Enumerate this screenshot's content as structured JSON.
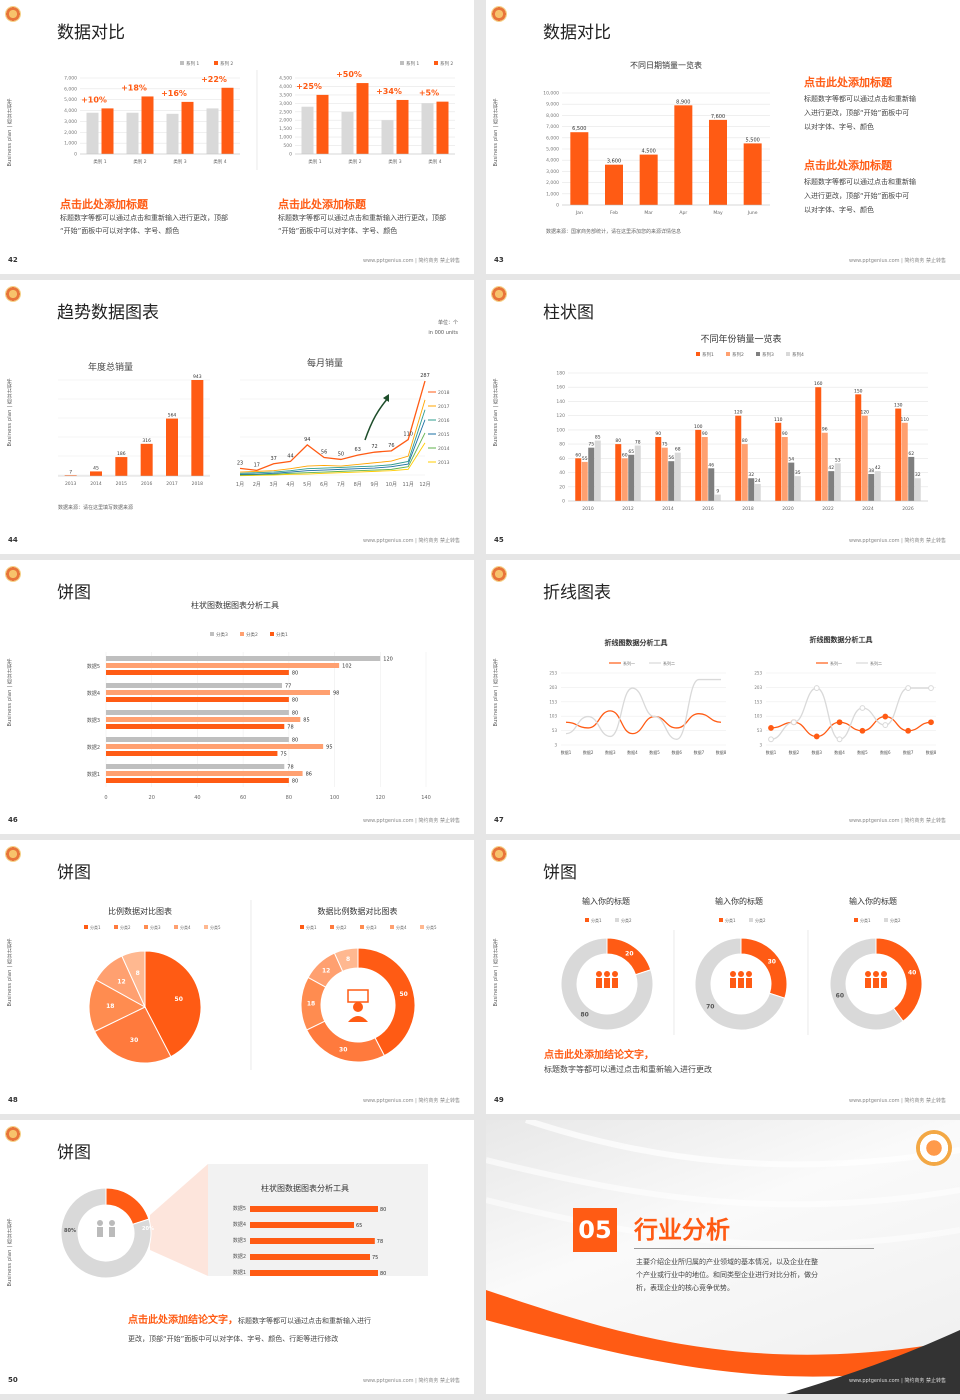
{
  "footer": "www.pptgenius.com | 简约商务 禁止转售",
  "side": "Business plan | 商业计划书",
  "s42": {
    "num": "42",
    "title": "数据对比",
    "heading1": "点击此处添加标题",
    "heading2": "点击此处添加标题",
    "body1a": "标题数字等都可以通过点击和重新输入进行更改，顶部",
    "body1b": "“开始”面板中可以对字体、字号、颜色",
    "body2a": "标题数字等都可以通过点击和重新输入进行更改，顶部",
    "body2b": "“开始”面板中可以对字体、字号、颜色"
  },
  "s43": {
    "num": "43",
    "title": "数据对比",
    "chart_title": "不同日期销量一览表",
    "source": "数据来源：国家商务部统计，请在这里添加您的来源详情信息",
    "h1": "点击此处添加标题",
    "b1a": "标题数字等都可以通过点击和重新输",
    "b1b": "入进行更改，顶部“开始”面板中可",
    "b1c": "以对字体、字号、颜色",
    "h2": "点击此处添加标题",
    "b2a": "标题数字等都可以通过点击和重新输",
    "b2b": "入进行更改，顶部“开始”面板中可",
    "b2c": "以对字体、字号、颜色"
  },
  "s44": {
    "num": "44",
    "title": "趋势数据图表",
    "unit1": "单位：个",
    "unit2": "in 000 units",
    "c1title": "年度总销量",
    "c2title": "每月销量",
    "source": "数据来源：请在这里填写数据来源"
  },
  "s45": {
    "num": "45",
    "title": "柱状图",
    "chart_title": "不同年份销量一览表"
  },
  "s46": {
    "num": "46",
    "title": "饼图",
    "chart_title": "柱状图数据图表分析工具"
  },
  "s47": {
    "num": "47",
    "title": "折线图表",
    "c1title": "折线图数据分析工具",
    "c2title": "折线图数据分析工具"
  },
  "s48": {
    "num": "48",
    "title": "饼图",
    "c1title": "比例数据对比图表",
    "c2title": "数据比例数据对比图表"
  },
  "s49": {
    "num": "49",
    "title": "饼图",
    "t1": "输入你的标题",
    "t2": "输入你的标题",
    "t3": "输入你的标题",
    "conc": "点击此处添加结论文字，",
    "body": "标题数字等都可以通过点击和重新输入进行更改"
  },
  "s50": {
    "num": "50",
    "title": "饼图",
    "chart_title": "柱状图数据图表分析工具",
    "conc": "点击此处添加结论文字，",
    "body1": "标题数字等都可以通过点击和重新输入进行",
    "body2": "更改，顶部“开始”面板中可以对字体、字号、颜色、行距等进行修改"
  },
  "s51": {
    "num": "51",
    "section": "05",
    "heading": "行业分析",
    "desc1": "主要介绍企业所归属的产业领域的基本情况，以及企业在整",
    "desc2": "个产业或行业中的地位。和同类型企业进行对比分析，做分",
    "desc3": "析，表现企业的核心竞争优势。",
    "footer_left": "Business plan | 商业计划书"
  },
  "chart_data": [
    {
      "type": "bar",
      "id": "s42a",
      "categories": [
        "类别 1",
        "类别 2",
        "类别 3",
        "类别 4"
      ],
      "series": [
        {
          "name": "系列 1",
          "values": [
            3800,
            3800,
            3700,
            4200
          ]
        },
        {
          "name": "系列 2",
          "values": [
            4200,
            5300,
            4800,
            6100
          ]
        }
      ],
      "labels": [
        "+10%",
        "+18%",
        "+16%",
        "+22%"
      ],
      "ylim": [
        0,
        7000
      ],
      "ticks": [
        "7,000",
        "6,000",
        "5,000",
        "4,000",
        "3,000",
        "2,000",
        "1,000",
        "0"
      ]
    },
    {
      "type": "bar",
      "id": "s42b",
      "categories": [
        "类别 1",
        "类别 2",
        "类别 3",
        "类别 4"
      ],
      "series": [
        {
          "name": "系列 1",
          "values": [
            2800,
            2500,
            2000,
            3000
          ]
        },
        {
          "name": "系列 2",
          "values": [
            3500,
            4200,
            3200,
            3100
          ]
        }
      ],
      "labels": [
        "+25%",
        "+50%",
        "+34%",
        "+5%"
      ],
      "ylim": [
        0,
        4500
      ],
      "ticks": [
        "4,500",
        "4,000",
        "3,500",
        "3,000",
        "2,500",
        "2,000",
        "1,500",
        "1,000",
        "500",
        "0"
      ]
    },
    {
      "type": "bar",
      "id": "s43",
      "categories": [
        "Jan",
        "Feb",
        "Mar",
        "Apr",
        "May",
        "June"
      ],
      "values": [
        6500,
        3600,
        4500,
        8900,
        7600,
        5500
      ],
      "value_labels": [
        "6,500",
        "3,600",
        "4,500",
        "8,900",
        "7,600",
        "5,500"
      ],
      "ylim": [
        0,
        10000
      ],
      "ticks": [
        "10,000",
        "9,000",
        "8,000",
        "7,000",
        "6,000",
        "5,000",
        "4,000",
        "3,000",
        "2,000",
        "1,000",
        "0"
      ]
    },
    {
      "type": "bar",
      "id": "s44a",
      "title": "年度总销量",
      "categories": [
        "2013",
        "2014",
        "2015",
        "2016",
        "2017",
        "2018"
      ],
      "values": [
        7,
        45,
        186,
        316,
        564,
        943
      ]
    },
    {
      "type": "line",
      "id": "s44b",
      "title": "每月销量",
      "categories": [
        "1月",
        "2月",
        "3月",
        "4月",
        "5月",
        "6月",
        "7月",
        "8月",
        "9月",
        "10月",
        "11月",
        "12月"
      ],
      "series": [
        {
          "name": "2018",
          "values": [
            23,
            17,
            37,
            44,
            94,
            56,
            50,
            63,
            72,
            76,
            110,
            287
          ]
        },
        {
          "name": "2017",
          "values": [
            12,
            14,
            16,
            22,
            30,
            32,
            30,
            35,
            40,
            45,
            60,
            230
          ]
        },
        {
          "name": "2016",
          "values": [
            8,
            10,
            12,
            16,
            22,
            24,
            26,
            28,
            30,
            34,
            44,
            200
          ]
        },
        {
          "name": "2015",
          "values": [
            5,
            6,
            8,
            12,
            16,
            18,
            20,
            22,
            24,
            28,
            36,
            170
          ]
        },
        {
          "name": "2014",
          "values": [
            3,
            4,
            5,
            8,
            10,
            12,
            14,
            16,
            18,
            20,
            28,
            130
          ]
        },
        {
          "name": "2013",
          "values": [
            1,
            2,
            3,
            5,
            6,
            8,
            10,
            12,
            14,
            16,
            20,
            100
          ]
        }
      ],
      "labels": [
        "23",
        "17",
        "37",
        "44",
        "94",
        "56",
        "50",
        "63",
        "72",
        "76",
        "110",
        "287"
      ]
    },
    {
      "type": "bar",
      "id": "s45",
      "title": "不同年份销量一览表",
      "categories": [
        "2010",
        "2012",
        "2014",
        "2016",
        "2018",
        "2020",
        "2022",
        "2024",
        "2026"
      ],
      "series": [
        {
          "name": "系列1",
          "values": [
            60,
            80,
            90,
            100,
            120,
            110,
            160,
            150,
            130
          ]
        },
        {
          "name": "系列2",
          "values": [
            55,
            60,
            75,
            90,
            80,
            90,
            96,
            120,
            110
          ]
        },
        {
          "name": "系列3",
          "values": [
            75,
            65,
            56,
            46,
            32,
            54,
            42,
            38,
            62
          ]
        },
        {
          "name": "系列4",
          "values": [
            85,
            78,
            68,
            9,
            24,
            35,
            53,
            42,
            32
          ]
        }
      ],
      "ylim": [
        0,
        180
      ],
      "ticks": [
        "180",
        "160",
        "140",
        "120",
        "100",
        "80",
        "60",
        "40",
        "20",
        "0"
      ]
    },
    {
      "type": "bar",
      "id": "s46",
      "title": "柱状图数据图表分析工具",
      "categories": [
        "数据1",
        "数据2",
        "数据3",
        "数据4",
        "数据5"
      ],
      "series": [
        {
          "name": "分类3",
          "values": [
            78,
            80,
            80,
            77,
            120
          ]
        },
        {
          "name": "分类2",
          "values": [
            86,
            95,
            85,
            98,
            102
          ]
        },
        {
          "name": "分类1",
          "values": [
            80,
            75,
            78,
            80,
            80
          ]
        }
      ],
      "xlim": [
        0,
        140
      ],
      "xticks": [
        "0",
        "20",
        "40",
        "60",
        "80",
        "100",
        "120",
        "140"
      ]
    },
    {
      "type": "line",
      "id": "s47a",
      "title": "折线图数据分析工具",
      "categories": [
        "数据1",
        "数据2",
        "数据3",
        "数据4",
        "数据5",
        "数据6",
        "数据7",
        "数据8"
      ],
      "series": [
        {
          "name": "系列一",
          "values": [
            80,
            60,
            120,
            40,
            100,
            60,
            110,
            80
          ]
        },
        {
          "name": "系列二",
          "values": [
            40,
            100,
            30,
            200,
            100,
            20,
            230,
            230
          ]
        }
      ],
      "ticks": [
        "253",
        "203",
        "153",
        "103",
        "53",
        "3"
      ]
    },
    {
      "type": "line",
      "id": "s47b",
      "title": "折线图数据分析工具",
      "categories": [
        "数据1",
        "数据2",
        "数据3",
        "数据4",
        "数据5",
        "数据6",
        "数据7",
        "数据8"
      ],
      "series": [
        {
          "name": "系列一",
          "values": [
            60,
            80,
            30,
            80,
            50,
            100,
            50,
            80
          ]
        },
        {
          "name": "系列二",
          "values": [
            20,
            80,
            200,
            20,
            130,
            70,
            200,
            200
          ]
        }
      ],
      "ticks": [
        "253",
        "203",
        "153",
        "103",
        "53",
        "3"
      ]
    },
    {
      "type": "pie",
      "id": "s48a",
      "title": "比例数据对比图表",
      "categories": [
        "分类1",
        "分类2",
        "分类3",
        "分类4",
        "分类5"
      ],
      "values": [
        50,
        30,
        18,
        12,
        8
      ]
    },
    {
      "type": "pie",
      "id": "s48b",
      "title": "数据比例数据对比图表",
      "categories": [
        "分类1",
        "分类2",
        "分类3",
        "分类4",
        "分类5"
      ],
      "values": [
        50,
        30,
        18,
        12,
        8
      ]
    },
    {
      "type": "pie",
      "id": "s49",
      "categories": [
        "分类1",
        "分类2"
      ],
      "series": [
        {
          "name": "输入你的标题",
          "values": [
            20,
            80
          ]
        },
        {
          "name": "输入你的标题",
          "values": [
            30,
            70
          ]
        },
        {
          "name": "输入你的标题",
          "values": [
            40,
            60
          ]
        }
      ]
    },
    {
      "type": "pie",
      "id": "s50a",
      "values": [
        20,
        80
      ],
      "labels": [
        "20%",
        "80%"
      ]
    },
    {
      "type": "bar",
      "id": "s50b",
      "title": "柱状图数据图表分析工具",
      "categories": [
        "数据5",
        "数据4",
        "数据3",
        "数据2",
        "数据1"
      ],
      "values": [
        80,
        65,
        78,
        75,
        80
      ]
    }
  ]
}
